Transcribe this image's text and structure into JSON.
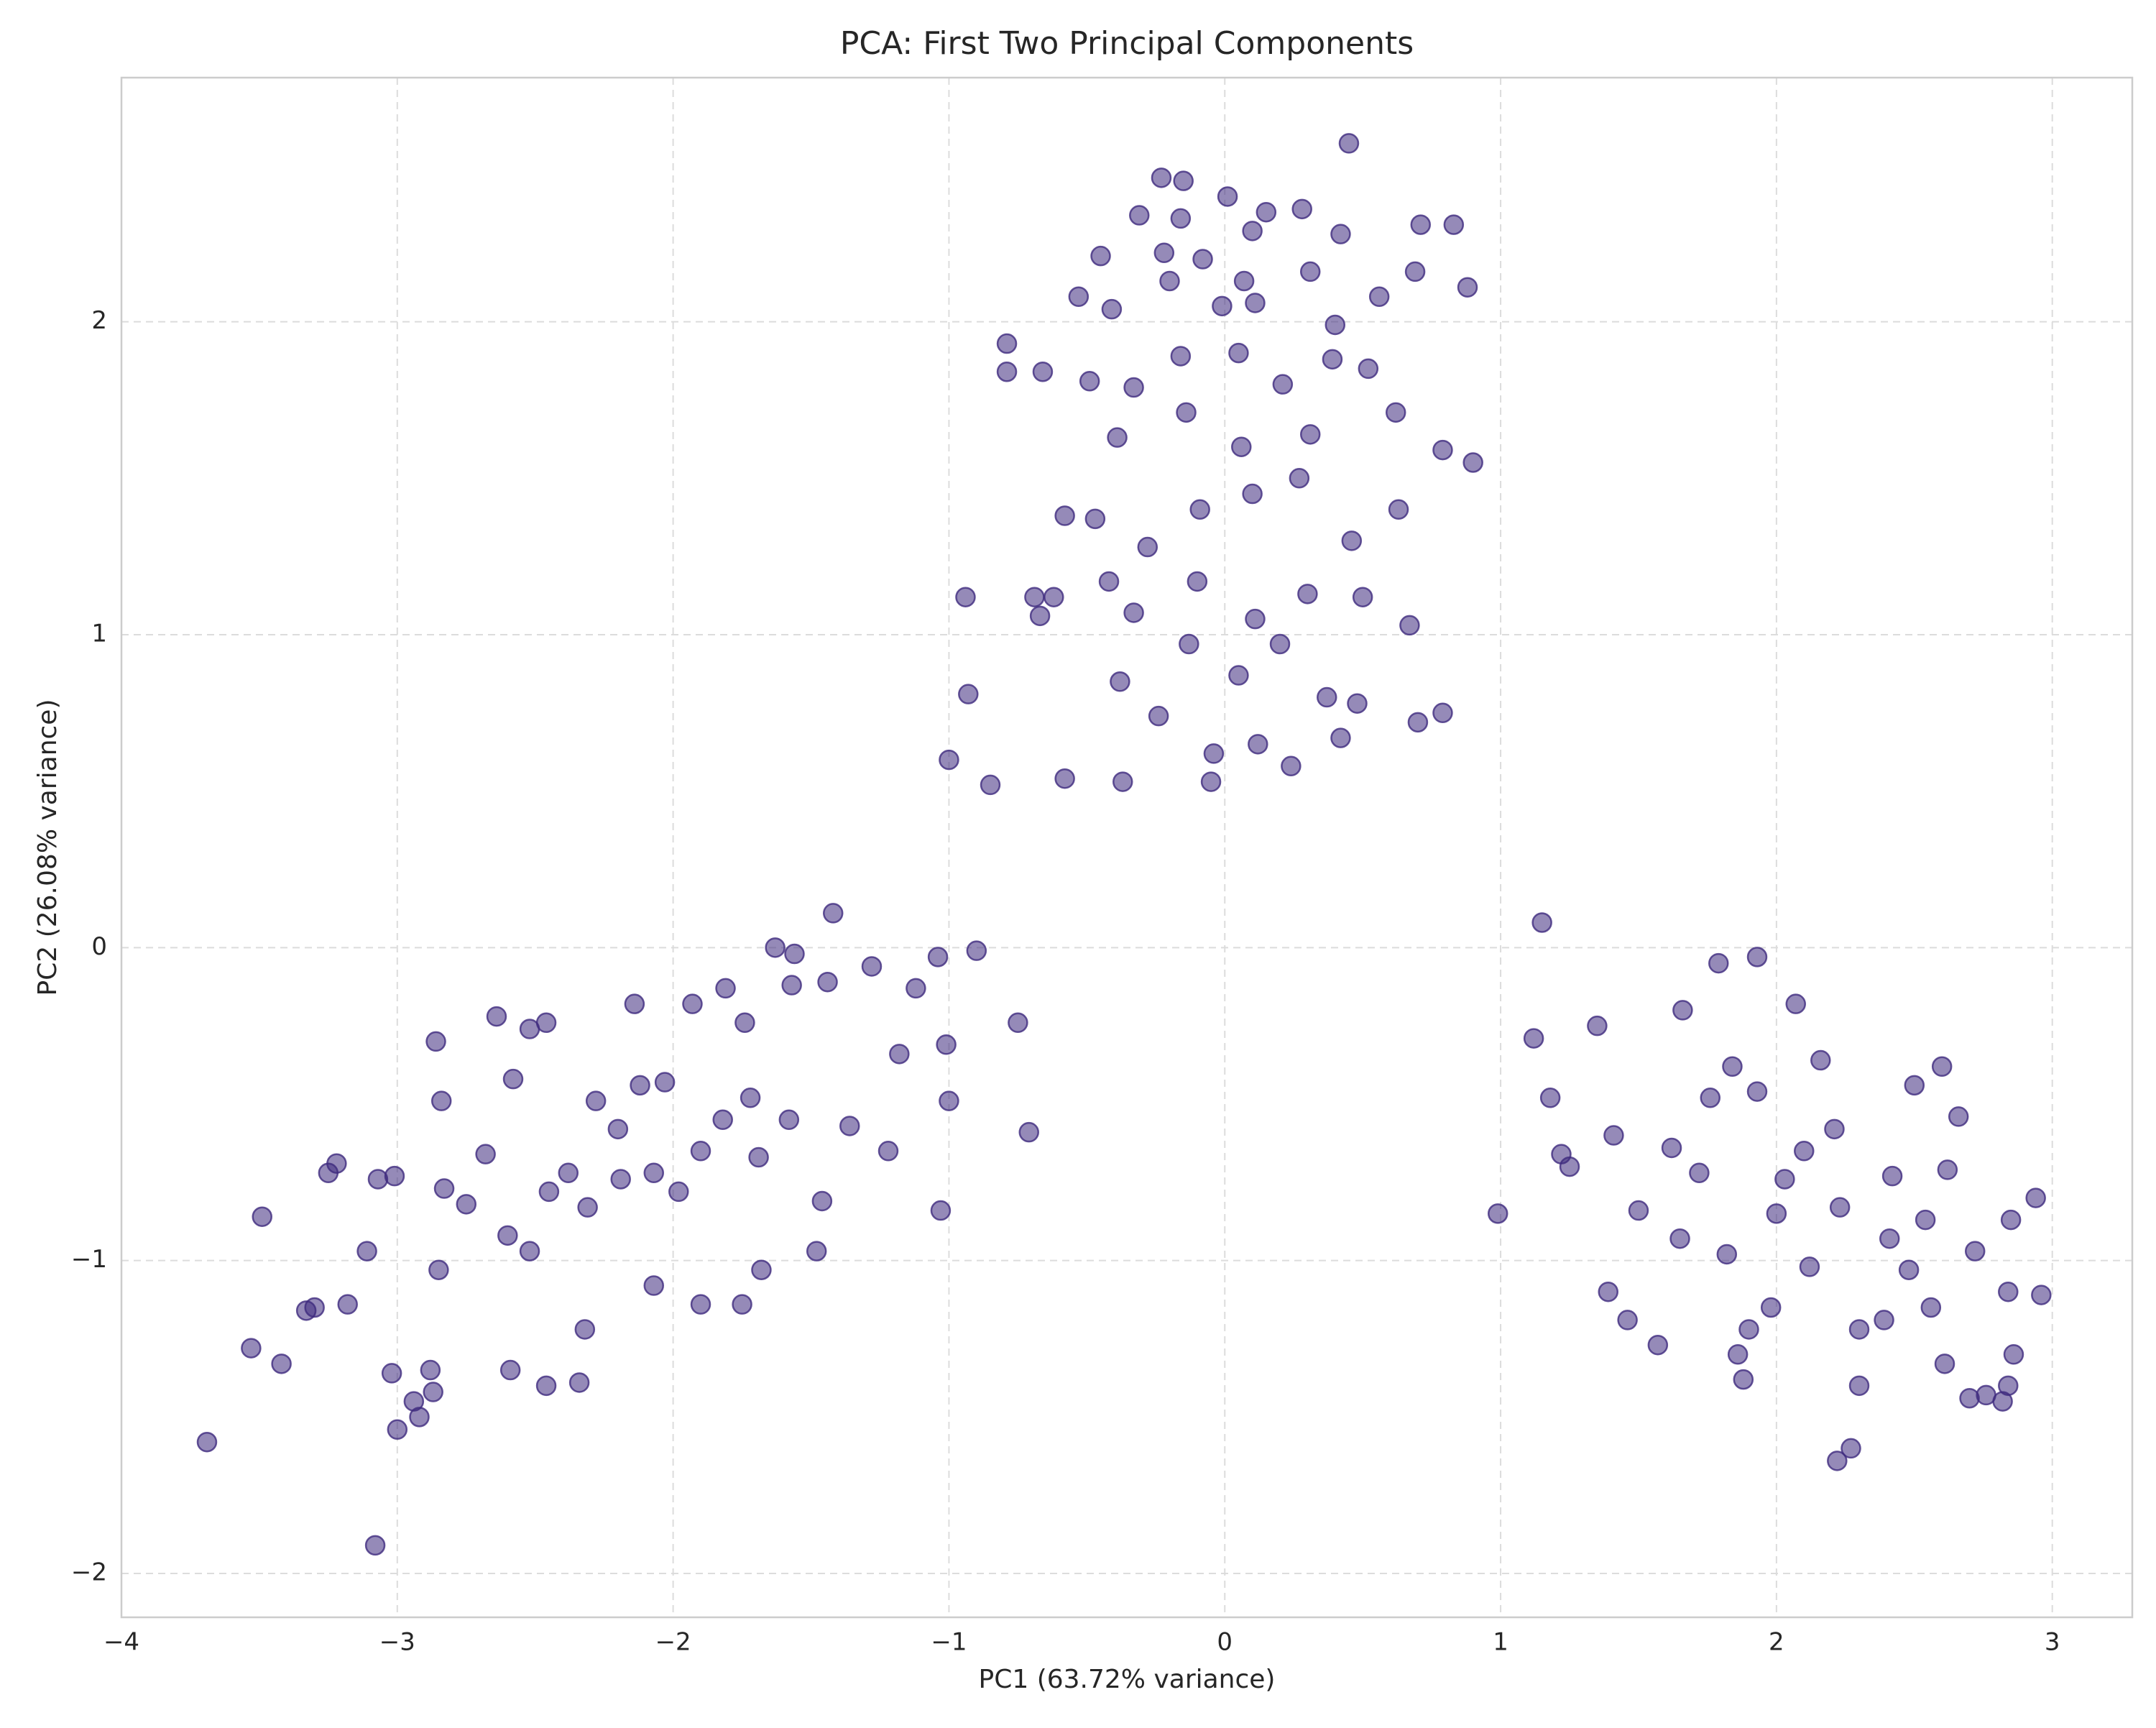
{
  "chart_data": {
    "type": "scatter",
    "title": "PCA: First Two Principal Components",
    "x_label": "PC1 (63.72% variance)",
    "y_label": "PC2 (26.08% variance)",
    "color": "#3e2a7e",
    "grid": true,
    "xlim": [
      -4.0,
      3.29
    ],
    "ylim": [
      -2.14,
      2.78
    ],
    "xticks": [
      {
        "value": -4,
        "label": "−4"
      },
      {
        "value": -3,
        "label": "−3"
      },
      {
        "value": -2,
        "label": "−2"
      },
      {
        "value": -1,
        "label": "−1"
      },
      0,
      1,
      2,
      3
    ],
    "yticks": [
      {
        "value": -2,
        "label": "−2"
      },
      {
        "value": -1,
        "label": "−1"
      },
      0,
      1,
      2
    ],
    "x": [
      0.45,
      -0.23,
      -0.15,
      0.01,
      -0.16,
      0.1,
      0.15,
      0.28,
      -0.31,
      0.42,
      0.71,
      0.83,
      -0.45,
      -0.22,
      -0.2,
      -0.08,
      0.07,
      0.11,
      0.31,
      0.56,
      0.69,
      0.88,
      -0.53,
      -0.41,
      -0.01,
      0.4,
      -0.79,
      -0.79,
      -0.66,
      -0.49,
      -0.33,
      -0.16,
      0.05,
      0.21,
      0.39,
      0.52,
      -0.39,
      -0.14,
      0.06,
      0.31,
      0.62,
      0.9,
      0.79,
      -0.58,
      -0.47,
      -0.28,
      -0.09,
      0.1,
      0.27,
      0.46,
      0.63,
      -0.69,
      -0.62,
      -0.42,
      -0.33,
      -0.1,
      0.11,
      0.3,
      0.5,
      0.67,
      -0.67,
      -0.38,
      -0.13,
      0.05,
      0.2,
      0.37,
      0.48,
      -0.93,
      -0.94,
      -1.0,
      -0.85,
      -0.58,
      -0.37,
      -0.05,
      0.24,
      -0.04,
      0.12,
      -0.24,
      0.7,
      0.79,
      0.42,
      -3.69,
      -3.08,
      -3.53,
      -3.42,
      -3.49,
      -3.25,
      -3.22,
      -3.33,
      -3.3,
      -3.18,
      -3.11,
      -3.07,
      -3.01,
      -3.0,
      -2.94,
      -2.92,
      -3.02,
      -2.88,
      -2.87,
      -2.85,
      -2.83,
      -2.84,
      -2.86,
      -2.75,
      -2.68,
      -2.64,
      -2.58,
      -2.52,
      -2.46,
      -2.59,
      -2.46,
      -2.34,
      -2.32,
      -2.52,
      -2.38,
      -2.28,
      -2.14,
      -2.03,
      -1.93,
      -1.81,
      -1.74,
      -1.72,
      -1.63,
      -1.56,
      -1.42,
      -1.57,
      -1.44,
      -1.28,
      -1.12,
      -1.04,
      -0.9,
      -1.01,
      -0.75,
      -0.71,
      -1.03,
      -1.0,
      -1.18,
      -1.22,
      -1.36,
      -1.46,
      -1.48,
      -1.68,
      -1.75,
      -1.9,
      -2.07,
      -2.19,
      -2.07,
      -1.98,
      -1.9,
      -1.82,
      -2.2,
      -2.31,
      -2.45,
      -2.12,
      -1.69,
      -1.58,
      -2.6,
      1.15,
      1.12,
      0.99,
      1.18,
      1.22,
      1.25,
      1.35,
      1.39,
      1.41,
      1.46,
      1.5,
      1.57,
      1.62,
      1.66,
      1.79,
      1.93,
      1.76,
      1.82,
      1.86,
      1.88,
      1.9,
      1.98,
      2.07,
      2.03,
      2.1,
      2.22,
      2.27,
      2.23,
      2.3,
      2.39,
      2.41,
      2.48,
      2.5,
      2.56,
      2.6,
      2.61,
      2.62,
      2.7,
      2.76,
      2.82,
      2.84,
      2.86,
      2.84,
      2.85,
      2.94,
      2.96,
      2.72,
      2.66,
      2.21,
      2.0,
      1.93,
      1.72,
      2.12,
      2.3,
      2.42,
      2.16,
      1.84,
      1.65,
      2.54
    ],
    "values": [
      2.57,
      2.46,
      2.45,
      2.4,
      2.33,
      2.29,
      2.35,
      2.36,
      2.34,
      2.28,
      2.31,
      2.31,
      2.21,
      2.22,
      2.13,
      2.2,
      2.13,
      2.06,
      2.16,
      2.08,
      2.16,
      2.11,
      2.08,
      2.04,
      2.05,
      1.99,
      1.93,
      1.84,
      1.84,
      1.81,
      1.79,
      1.89,
      1.9,
      1.8,
      1.88,
      1.85,
      1.63,
      1.71,
      1.6,
      1.64,
      1.71,
      1.55,
      1.59,
      1.38,
      1.37,
      1.28,
      1.4,
      1.45,
      1.5,
      1.3,
      1.4,
      1.12,
      1.12,
      1.17,
      1.07,
      1.17,
      1.05,
      1.13,
      1.12,
      1.03,
      1.06,
      0.85,
      0.97,
      0.87,
      0.97,
      0.8,
      0.78,
      0.81,
      1.12,
      0.6,
      0.52,
      0.54,
      0.53,
      0.53,
      0.58,
      0.62,
      0.65,
      0.74,
      0.72,
      0.75,
      0.67,
      -1.58,
      -1.91,
      -1.28,
      -1.33,
      -0.86,
      -0.72,
      -0.69,
      -1.16,
      -1.15,
      -1.14,
      -0.97,
      -0.74,
      -0.73,
      -1.54,
      -1.45,
      -1.5,
      -1.36,
      -1.35,
      -1.42,
      -1.03,
      -0.77,
      -0.49,
      -0.3,
      -0.82,
      -0.66,
      -0.22,
      -0.42,
      -0.26,
      -0.24,
      -1.35,
      -1.4,
      -1.39,
      -1.22,
      -0.97,
      -0.72,
      -0.49,
      -0.18,
      -0.43,
      -0.18,
      -0.13,
      -0.24,
      -0.48,
      0.0,
      -0.02,
      0.11,
      -0.12,
      -0.11,
      -0.06,
      -0.13,
      -0.03,
      -0.01,
      -0.31,
      -0.24,
      -0.59,
      -0.84,
      -0.49,
      -0.34,
      -0.65,
      -0.57,
      -0.81,
      -0.97,
      -1.03,
      -1.14,
      -1.14,
      -1.08,
      -0.74,
      -0.72,
      -0.78,
      -0.65,
      -0.55,
      -0.58,
      -0.83,
      -0.78,
      -0.44,
      -0.67,
      -0.55,
      -0.92,
      0.08,
      -0.29,
      -0.85,
      -0.48,
      -0.66,
      -0.7,
      -0.25,
      -1.1,
      -0.6,
      -1.19,
      -0.84,
      -1.27,
      -0.64,
      -0.2,
      -0.05,
      -0.03,
      -0.48,
      -0.98,
      -1.3,
      -1.38,
      -1.22,
      -1.15,
      -0.18,
      -0.74,
      -0.65,
      -1.64,
      -1.6,
      -0.83,
      -1.4,
      -1.19,
      -0.93,
      -1.03,
      -0.44,
      -1.15,
      -0.38,
      -1.33,
      -0.71,
      -1.44,
      -1.43,
      -1.45,
      -1.4,
      -1.3,
      -1.1,
      -0.87,
      -0.8,
      -1.11,
      -0.97,
      -0.54,
      -0.58,
      -0.85,
      -0.46,
      -0.72,
      -1.02,
      -1.22,
      -0.73,
      -0.36,
      -0.38,
      -0.93,
      -0.87
    ]
  }
}
